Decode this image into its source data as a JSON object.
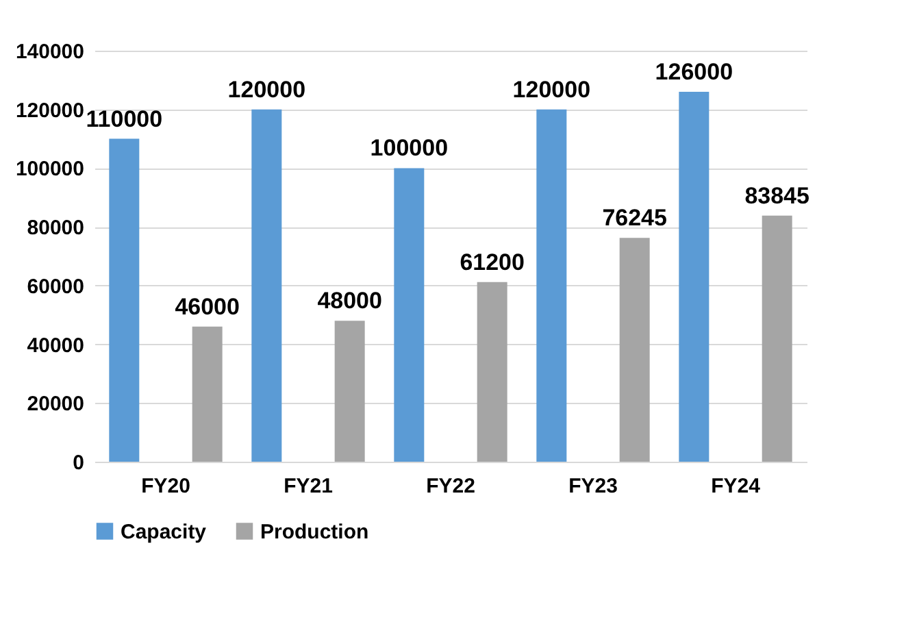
{
  "chart_data": {
    "type": "bar",
    "categories": [
      "FY20",
      "FY21",
      "FY22",
      "FY23",
      "FY24"
    ],
    "series": [
      {
        "name": "Capacity",
        "color": "#5b9bd5",
        "values": [
          110000,
          120000,
          100000,
          120000,
          126000
        ]
      },
      {
        "name": "Production",
        "color": "#a5a5a5",
        "values": [
          46000,
          48000,
          61200,
          76245,
          83845
        ]
      }
    ],
    "ylim": [
      0,
      140000
    ],
    "yticks": [
      0,
      20000,
      40000,
      60000,
      80000,
      100000,
      120000,
      140000
    ],
    "grid": "y",
    "legend": "bottom",
    "data_labels": true
  }
}
